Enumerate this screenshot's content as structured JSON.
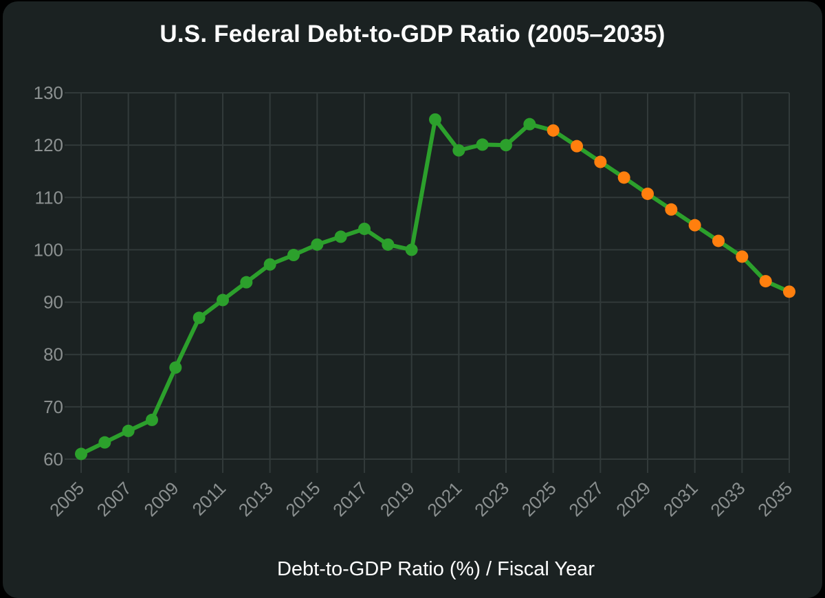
{
  "chart_data": {
    "type": "line",
    "title": "U.S. Federal Debt-to-GDP Ratio (2005–2035)",
    "xlabel": "Debt-to-GDP Ratio (%) / Fiscal Year",
    "ylabel": "",
    "x": [
      2005,
      2006,
      2007,
      2008,
      2009,
      2010,
      2011,
      2012,
      2013,
      2014,
      2015,
      2016,
      2017,
      2018,
      2019,
      2020,
      2021,
      2022,
      2023,
      2024,
      2025,
      2026,
      2027,
      2028,
      2029,
      2030,
      2031,
      2032,
      2033,
      2034,
      2035
    ],
    "values": [
      61,
      63.2,
      65.4,
      67.5,
      77.5,
      87,
      90.4,
      93.8,
      97.2,
      99,
      101,
      102.5,
      104,
      101,
      100,
      124.9,
      119,
      120.1,
      120,
      124,
      122.8,
      119.8,
      116.8,
      113.8,
      110.7,
      107.7,
      104.7,
      101.7,
      98.7,
      94,
      92
    ],
    "marker_colors": [
      "#2ca02c",
      "#2ca02c",
      "#2ca02c",
      "#2ca02c",
      "#2ca02c",
      "#2ca02c",
      "#2ca02c",
      "#2ca02c",
      "#2ca02c",
      "#2ca02c",
      "#2ca02c",
      "#2ca02c",
      "#2ca02c",
      "#2ca02c",
      "#2ca02c",
      "#2ca02c",
      "#2ca02c",
      "#2ca02c",
      "#2ca02c",
      "#2ca02c",
      "#ff7f0e",
      "#ff7f0e",
      "#ff7f0e",
      "#ff7f0e",
      "#ff7f0e",
      "#ff7f0e",
      "#ff7f0e",
      "#ff7f0e",
      "#ff7f0e",
      "#ff7f0e",
      "#ff7f0e"
    ],
    "xticks": [
      "2005",
      "2007",
      "2009",
      "2011",
      "2013",
      "2015",
      "2017",
      "2019",
      "2021",
      "2023",
      "2025",
      "2027",
      "2029",
      "2031",
      "2033",
      "2035"
    ],
    "yticks": [
      "60",
      "70",
      "80",
      "90",
      "100",
      "110",
      "120",
      "130"
    ],
    "ylim": [
      60,
      130
    ],
    "xlim": [
      2005,
      2035
    ],
    "grid": true,
    "line_color": "#2ca02c",
    "grid_color": "#323a3a",
    "background": "#1b2222",
    "legend": "none"
  }
}
